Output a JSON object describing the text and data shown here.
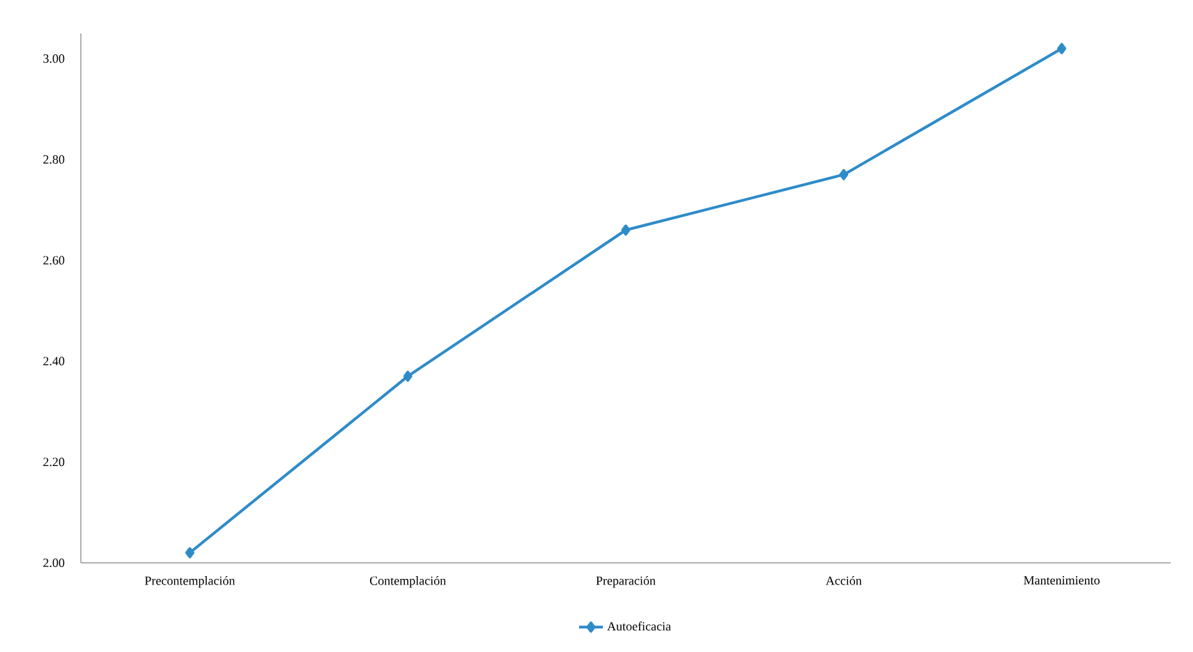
{
  "chart_data": {
    "type": "line",
    "categories": [
      "Precontemplación",
      "Contemplación",
      "Preparación",
      "Acción",
      "Mantenimiento"
    ],
    "series": [
      {
        "name": "Autoeficacia",
        "color": "#2e8bc9",
        "values": [
          2.02,
          2.37,
          2.66,
          2.77,
          3.02
        ]
      }
    ],
    "ylim": [
      2.0,
      3.05
    ],
    "yticks": [
      {
        "value": 2.0,
        "label": "2.00"
      },
      {
        "value": 2.2,
        "label": "2.20"
      },
      {
        "value": 2.4,
        "label": "2.40"
      },
      {
        "value": 2.6,
        "label": "2.60"
      },
      {
        "value": 2.8,
        "label": "2.80"
      },
      {
        "value": 3.0,
        "label": "3.00"
      }
    ],
    "grid": false,
    "legend": "bottom",
    "marker": "diamond",
    "line_style": "solid"
  }
}
